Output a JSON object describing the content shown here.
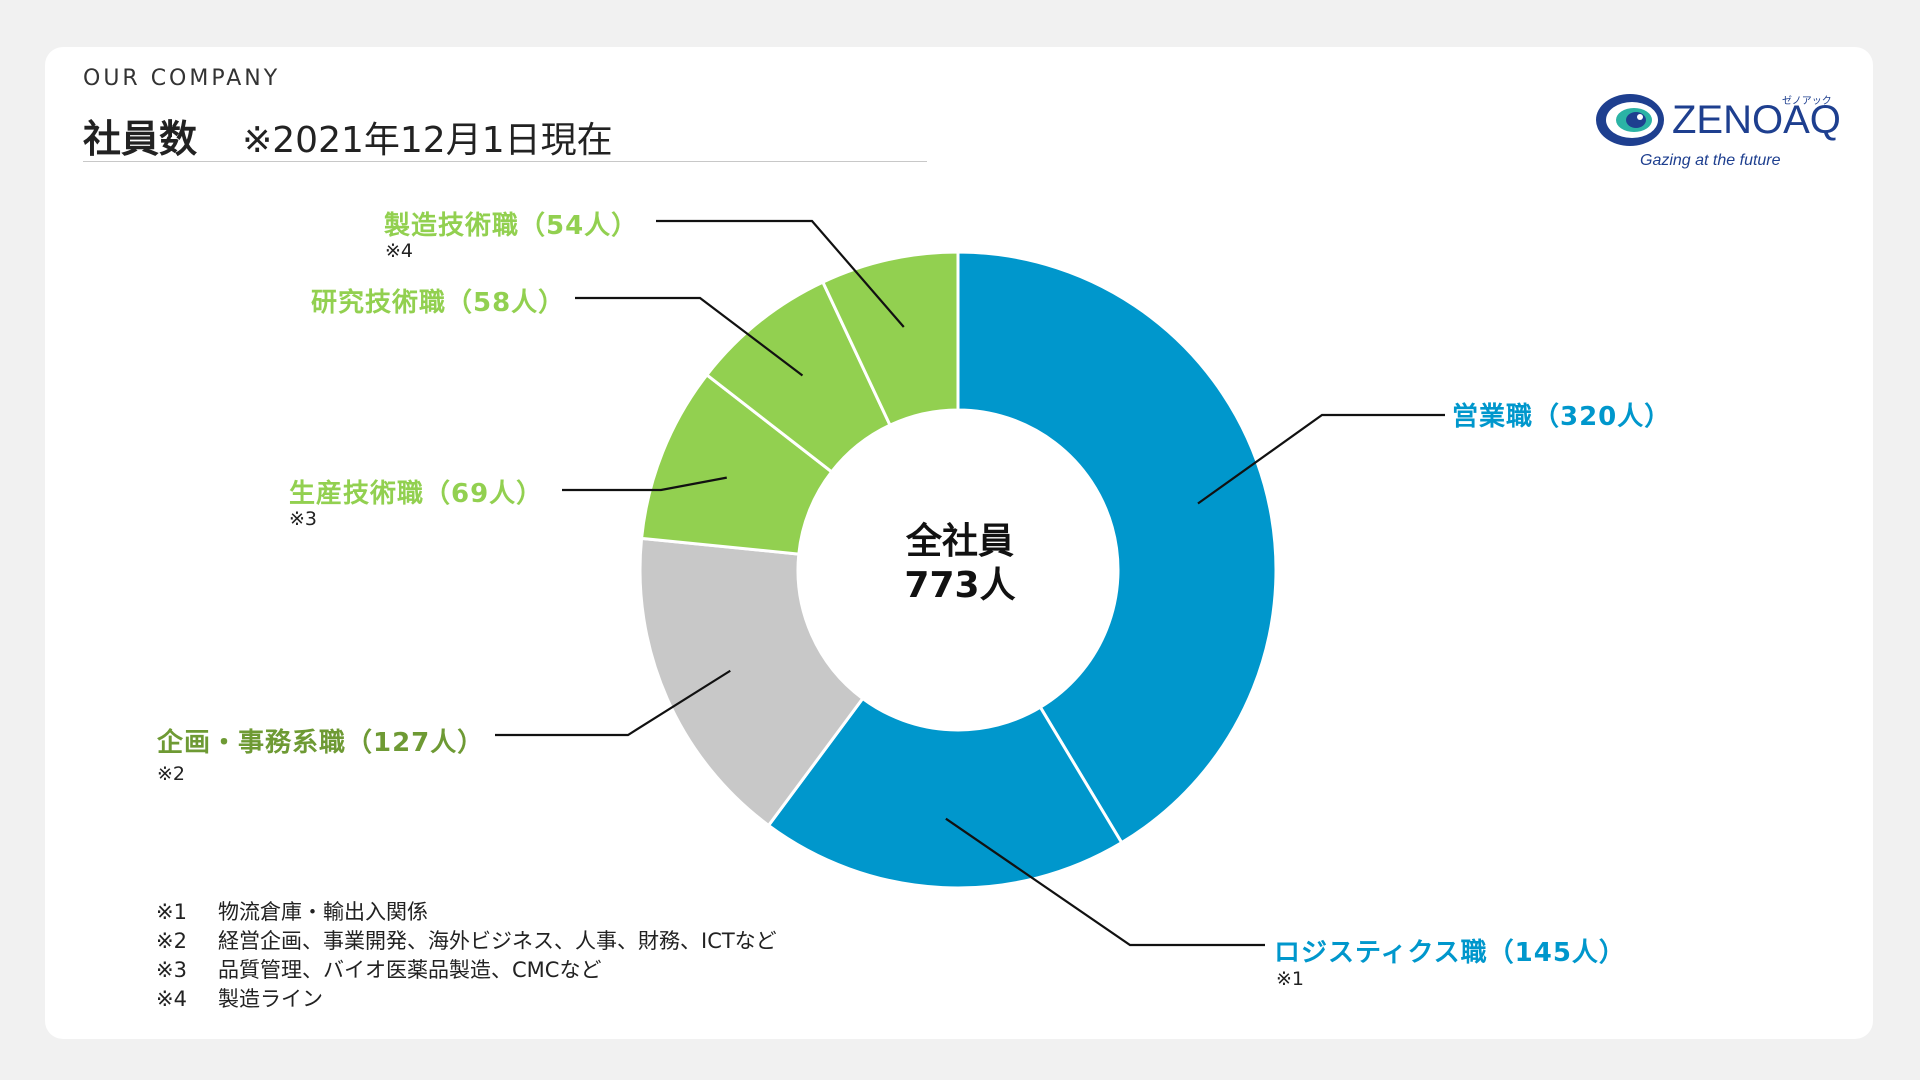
{
  "header": {
    "eyebrow": "OUR COMPANY",
    "title": "社員数",
    "note": "※2021年12月1日現在"
  },
  "logo": {
    "name": "ZENOAQ",
    "kana": "ゼノアック",
    "tagline": "Gazing at the future"
  },
  "center": {
    "line1": "全社員",
    "line2": "773人"
  },
  "colors": {
    "blue": "#0097cc",
    "gray": "#c8c8c8",
    "green": "#92d050",
    "olive_label": "#6e9a34"
  },
  "chart_data": {
    "type": "pie",
    "hole": "donut",
    "total": 773,
    "slices": [
      {
        "label": "営業職（320人）",
        "value": 320,
        "color": "#0097cc",
        "note": ""
      },
      {
        "label": "ロジスティクス職（145人）",
        "value": 145,
        "color": "#0097cc",
        "note": "※1"
      },
      {
        "label": "企画・事務系職（127人）",
        "value": 127,
        "color": "#c8c8c8",
        "note": "※2"
      },
      {
        "label": "生産技術職（69人）",
        "value": 69,
        "color": "#92d050",
        "note": "※3"
      },
      {
        "label": "研究技術職（58人）",
        "value": 58,
        "color": "#92d050",
        "note": ""
      },
      {
        "label": "製造技術職（54人）",
        "value": 54,
        "color": "#92d050",
        "note": "※4"
      }
    ]
  },
  "footnotes": [
    {
      "mark": "※1",
      "text": "物流倉庫・輸出入関係"
    },
    {
      "mark": "※2",
      "text": "経営企画、事業開発、海外ビジネス、人事、財務、ICTなど"
    },
    {
      "mark": "※3",
      "text": "品質管理、バイオ医薬品製造、CMCなど"
    },
    {
      "mark": "※4",
      "text": "製造ライン"
    }
  ]
}
